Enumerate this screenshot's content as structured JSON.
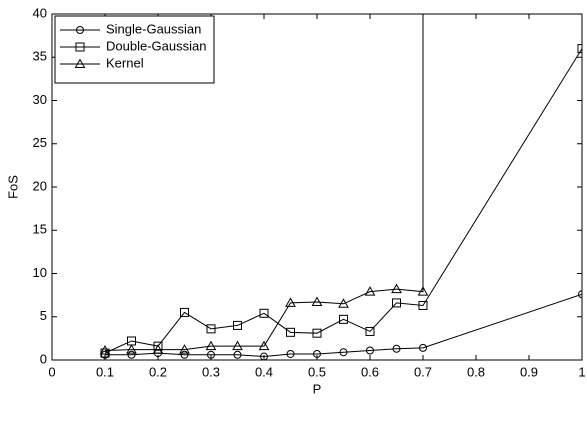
{
  "chart_data": {
    "type": "line",
    "x_label": "P",
    "y_label": "FoS",
    "xlim": [
      0,
      1
    ],
    "xticks": [
      0,
      0.1,
      0.2,
      0.3,
      0.4,
      0.5,
      0.6,
      0.7,
      0.8,
      0.9,
      1
    ],
    "ylim": [
      0,
      40
    ],
    "yticks": [
      0,
      5,
      10,
      15,
      20,
      25,
      30,
      35,
      40
    ],
    "legend": "upper-left",
    "grid": false,
    "series": [
      {
        "name": "Single-Gaussian",
        "color": "#000000",
        "marker": "circle",
        "x": [
          0.1,
          0.15,
          0.2,
          0.25,
          0.3,
          0.35,
          0.4,
          0.45,
          0.5,
          0.55,
          0.6,
          0.65,
          0.7,
          1
        ],
        "values": [
          0.6,
          0.6,
          0.8,
          0.6,
          0.6,
          0.6,
          0.4,
          0.7,
          0.7,
          0.9,
          1.1,
          1.3,
          1.4,
          7.6
        ]
      },
      {
        "name": "Double-Gaussian",
        "color": "#000000",
        "marker": "square",
        "x": [
          0.1,
          0.15,
          0.2,
          0.25,
          0.3,
          0.35,
          0.4,
          0.45,
          0.5,
          0.55,
          0.6,
          0.65,
          0.7,
          1
        ],
        "values": [
          0.8,
          2.2,
          1.6,
          5.5,
          3.6,
          4.0,
          5.4,
          3.2,
          3.1,
          4.7,
          3.3,
          6.6,
          6.3,
          36
        ]
      },
      {
        "name": "Kernel",
        "color": "#000000",
        "marker": "triangle",
        "x": [
          0.1,
          0.15,
          0.2,
          0.25,
          0.3,
          0.35,
          0.4,
          0.45,
          0.5,
          0.55,
          0.6,
          0.65,
          0.7,
          0.7
        ],
        "values": [
          1.1,
          1.2,
          1.2,
          1.2,
          1.6,
          1.6,
          1.6,
          6.6,
          6.7,
          6.5,
          7.9,
          8.2,
          7.9,
          45
        ]
      }
    ]
  }
}
